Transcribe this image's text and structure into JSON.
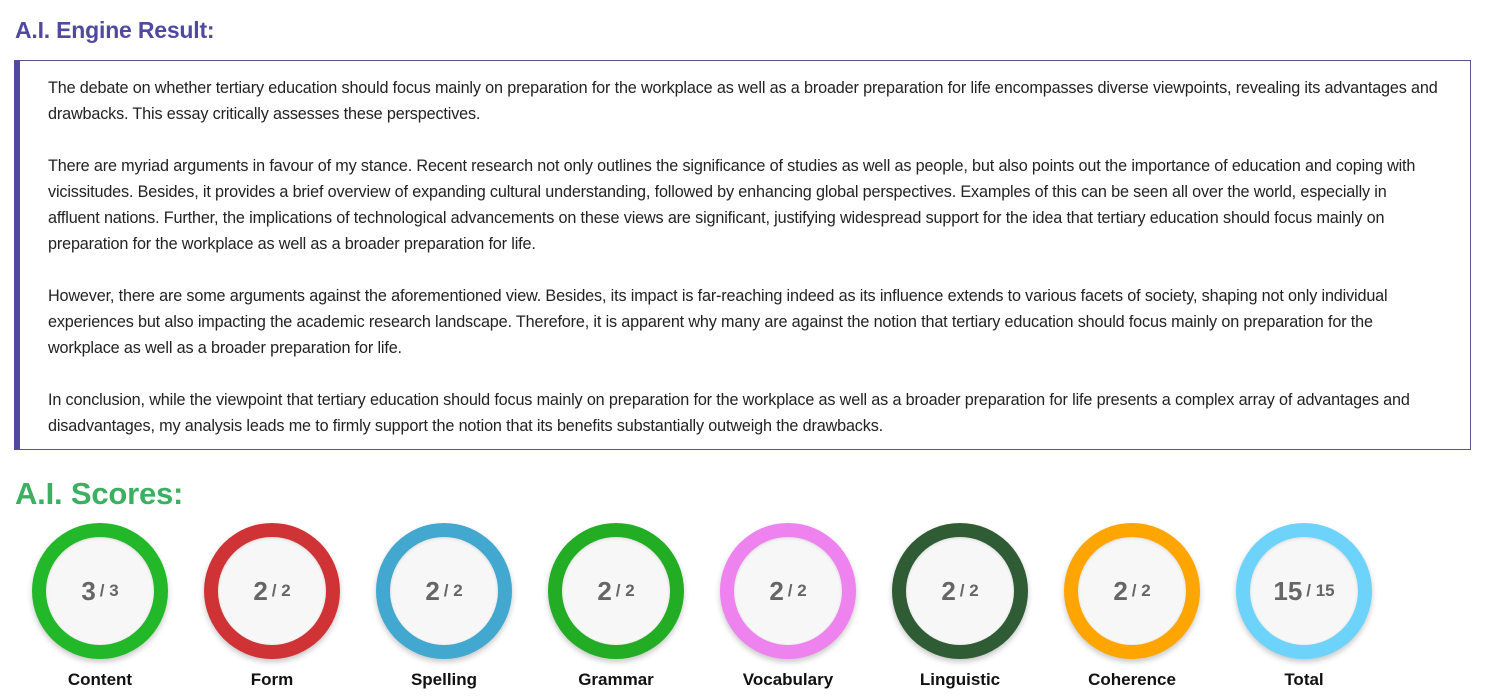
{
  "engine_result": {
    "title": "A.I. Engine Result:",
    "accent_color": "#5149a0",
    "paragraphs": [
      "The debate on whether tertiary education should focus mainly on preparation for the workplace as well as a broader preparation for life encompasses diverse viewpoints, revealing its advantages and drawbacks. This essay critically assesses these perspectives.",
      "There are myriad arguments in favour of my stance. Recent research not only outlines the significance of studies as well as people, but also points out the importance of education and coping with vicissitudes. Besides, it provides a brief overview of expanding cultural understanding, followed by enhancing global perspectives. Examples of this can be seen all over the world, especially in affluent nations. Further, the implications of technological advancements on these views are significant, justifying widespread support for the idea that tertiary education should focus mainly on preparation for the workplace as well as a broader preparation for life.",
      "However, there are some arguments against the aforementioned view. Besides, its impact is far-reaching indeed as its influence extends to various facets of society, shaping not only individual experiences but also impacting the academic research landscape. Therefore, it is apparent why many are against the notion that tertiary education should focus mainly on preparation for the workplace as well as a broader preparation for life.",
      "In conclusion, while the viewpoint that tertiary education should focus mainly on preparation for the workplace as well as a broader preparation for life presents a complex array of advantages and disadvantages, my analysis leads me to firmly support the notion that its benefits substantially outweigh the drawbacks."
    ]
  },
  "scores": {
    "title": "A.I. Scores:",
    "title_color": "#3ab060",
    "items": [
      {
        "label": "Content",
        "score": "3",
        "max": "/ 3",
        "color": "#22b82a"
      },
      {
        "label": "Form",
        "score": "2",
        "max": "/ 2",
        "color": "#d03336"
      },
      {
        "label": "Spelling",
        "score": "2",
        "max": "/ 2",
        "color": "#42a8d0"
      },
      {
        "label": "Grammar",
        "score": "2",
        "max": "/ 2",
        "color": "#22ad24"
      },
      {
        "label": "Vocabulary",
        "score": "2",
        "max": "/ 2",
        "color": "#ee82ee"
      },
      {
        "label": "Linguistic",
        "score": "2",
        "max": "/ 2",
        "color": "#2f5c34"
      },
      {
        "label": "Coherence",
        "score": "2",
        "max": "/ 2",
        "color": "#ffa500"
      },
      {
        "label": "Total",
        "score": "15",
        "max": "/ 15",
        "color": "#6dd3fb"
      }
    ]
  }
}
